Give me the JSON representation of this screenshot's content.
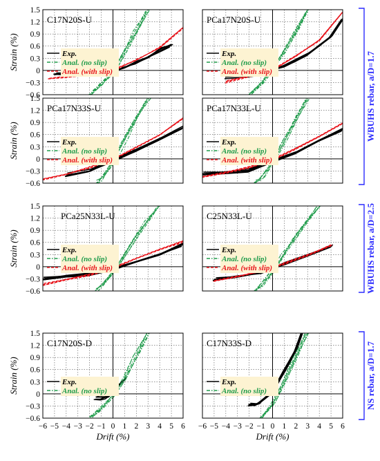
{
  "colors": {
    "exp": "#000000",
    "anal_no_slip": "#1e9b4a",
    "anal_with_slip": "#e8141b",
    "bracket": "#2a2aff",
    "grid": "#555555"
  },
  "axes": {
    "xlabel": "Drift (%)",
    "ylabel": "Strain (%)",
    "xlim": [
      -6,
      6
    ],
    "ylim": [
      -0.6,
      1.5
    ],
    "x_ticks": [
      "−6",
      "−5",
      "−4",
      "−3",
      "−2",
      "−1",
      "0",
      "1",
      "2",
      "3",
      "4",
      "5",
      "6"
    ],
    "y_ticks": [
      "1.5",
      "1.2",
      "0.9",
      "0.6",
      "0.3",
      "0",
      "−0.3",
      "−0.6"
    ]
  },
  "legend": {
    "exp": "Exp.",
    "no_slip": "Anal. (no slip)",
    "with_slip": "Anal. (with slip)"
  },
  "groups": [
    {
      "label": "WBUHS rebar, a/D=1.7",
      "rows": [
        0,
        1
      ]
    },
    {
      "label": "WBUHS rebar, a/D=2.5",
      "rows": [
        2,
        2
      ]
    },
    {
      "label": "NS rebar, a/D=1.7",
      "rows": [
        3,
        3
      ]
    }
  ],
  "chart_data": [
    {
      "type": "line",
      "title": "C17N20S-U",
      "xlim": [
        -6,
        6
      ],
      "ylim": [
        -0.6,
        1.5
      ],
      "series": [
        {
          "name": "Exp.",
          "x": [
            -5,
            -3,
            -1,
            0,
            1,
            2,
            3,
            4,
            5
          ],
          "y": [
            -0.08,
            -0.08,
            -0.07,
            -0.03,
            0.08,
            0.2,
            0.32,
            0.5,
            0.62
          ]
        },
        {
          "name": "Anal. (no slip)",
          "x": [
            -2,
            -1,
            0,
            1,
            2,
            3
          ],
          "y": [
            -0.6,
            -0.33,
            -0.03,
            0.45,
            0.98,
            1.5
          ]
        },
        {
          "name": "Anal. (with slip)",
          "x": [
            -5.5,
            -4,
            -2,
            0,
            2,
            4,
            6
          ],
          "y": [
            -0.2,
            -0.15,
            -0.1,
            0.0,
            0.26,
            0.57,
            1.05
          ]
        }
      ]
    },
    {
      "type": "line",
      "title": "PCa17N20S-U",
      "xlim": [
        -6,
        6
      ],
      "ylim": [
        -0.6,
        1.5
      ],
      "series": [
        {
          "name": "Exp.",
          "x": [
            -4,
            -2,
            -1,
            0,
            1,
            2,
            3,
            4,
            5,
            6
          ],
          "y": [
            -0.15,
            -0.14,
            -0.1,
            0.0,
            0.12,
            0.25,
            0.4,
            0.6,
            0.85,
            1.3
          ]
        },
        {
          "name": "Anal. (no slip)",
          "x": [
            -2,
            -1,
            0,
            1,
            2,
            3
          ],
          "y": [
            -0.6,
            -0.35,
            0.0,
            0.45,
            0.98,
            1.5
          ]
        },
        {
          "name": "Anal. (with slip)",
          "x": [
            -4,
            -2,
            0,
            2,
            4,
            6
          ],
          "y": [
            -0.28,
            -0.15,
            0.0,
            0.35,
            0.75,
            1.45
          ]
        }
      ]
    },
    {
      "type": "line",
      "title": "PCa17N33S-U",
      "xlim": [
        -6,
        6
      ],
      "ylim": [
        -0.6,
        1.5
      ],
      "series": [
        {
          "name": "Exp.",
          "x": [
            -4,
            -2,
            0,
            2,
            4,
            6
          ],
          "y": [
            -0.4,
            -0.3,
            -0.05,
            0.2,
            0.48,
            0.78
          ]
        },
        {
          "name": "Anal. (no slip)",
          "x": [
            -1.5,
            -1,
            0,
            1,
            2,
            3
          ],
          "y": [
            -0.6,
            -0.52,
            -0.1,
            0.48,
            1.0,
            1.5
          ]
        },
        {
          "name": "Anal. (with slip)",
          "x": [
            -6,
            -4,
            -2,
            0,
            2,
            4,
            6
          ],
          "y": [
            -0.5,
            -0.38,
            -0.22,
            -0.02,
            0.28,
            0.6,
            1.0
          ]
        }
      ]
    },
    {
      "type": "line",
      "title": "PCa17N33L-U",
      "xlim": [
        -6,
        6
      ],
      "ylim": [
        -0.6,
        1.5
      ],
      "series": [
        {
          "name": "Exp.",
          "x": [
            -6,
            -4,
            -2,
            0,
            2,
            4,
            6
          ],
          "y": [
            -0.38,
            -0.35,
            -0.28,
            -0.05,
            0.15,
            0.45,
            0.72
          ]
        },
        {
          "name": "Anal. (no slip)",
          "x": [
            -1.5,
            -1,
            0,
            1,
            2,
            3
          ],
          "y": [
            -0.6,
            -0.5,
            -0.08,
            0.45,
            0.98,
            1.5
          ]
        },
        {
          "name": "Anal. (with slip)",
          "x": [
            -6,
            -4,
            -2,
            0,
            2,
            4,
            6
          ],
          "y": [
            -0.45,
            -0.35,
            -0.2,
            -0.02,
            0.25,
            0.55,
            0.88
          ]
        }
      ]
    },
    {
      "type": "line",
      "title": "PCa25N33L-U",
      "xlim": [
        -6,
        6
      ],
      "ylim": [
        -0.6,
        1.5
      ],
      "series": [
        {
          "name": "Exp.",
          "x": [
            -6,
            -4,
            -2,
            0,
            2,
            4,
            6
          ],
          "y": [
            -0.3,
            -0.25,
            -0.18,
            -0.05,
            0.12,
            0.3,
            0.55
          ]
        },
        {
          "name": "Anal. (no slip)",
          "x": [
            -1.5,
            -1,
            0,
            1,
            2,
            3,
            4
          ],
          "y": [
            -0.6,
            -0.5,
            -0.15,
            0.3,
            0.75,
            1.15,
            1.5
          ]
        },
        {
          "name": "Anal. (with slip)",
          "x": [
            -6,
            -4,
            -2,
            0,
            2,
            4,
            6
          ],
          "y": [
            -0.45,
            -0.33,
            -0.2,
            -0.03,
            0.2,
            0.42,
            0.62
          ]
        }
      ]
    },
    {
      "type": "line",
      "title": "C25N33L-U",
      "xlim": [
        -6,
        6
      ],
      "ylim": [
        -0.6,
        1.5
      ],
      "series": [
        {
          "name": "Exp.",
          "x": [
            -5,
            -3,
            -1,
            0,
            1,
            3,
            5
          ],
          "y": [
            -0.32,
            -0.25,
            -0.15,
            -0.05,
            0.08,
            0.28,
            0.5
          ]
        },
        {
          "name": "Anal. (no slip)",
          "x": [
            -1.5,
            -1,
            0,
            1,
            2,
            3,
            4
          ],
          "y": [
            -0.6,
            -0.48,
            -0.12,
            0.32,
            0.75,
            1.15,
            1.5
          ]
        },
        {
          "name": "Anal. (with slip)",
          "x": [
            -5,
            -3,
            -1,
            0,
            1,
            3,
            5
          ],
          "y": [
            -0.35,
            -0.25,
            -0.12,
            -0.03,
            0.08,
            0.28,
            0.52
          ]
        }
      ]
    },
    {
      "type": "line",
      "title": "C17N20S-D",
      "xlim": [
        -6,
        6
      ],
      "ylim": [
        -0.6,
        1.5
      ],
      "series": [
        {
          "name": "Exp.",
          "x": [
            -1.5,
            -1,
            -0.5,
            0,
            0.5,
            1
          ],
          "y": [
            -0.1,
            -0.1,
            -0.08,
            0.05,
            0.2,
            0.35
          ]
        },
        {
          "name": "Anal. (no slip)",
          "x": [
            -2,
            -1,
            0,
            1,
            2,
            3
          ],
          "y": [
            -0.6,
            -0.35,
            -0.05,
            0.4,
            0.95,
            1.5
          ]
        }
      ]
    },
    {
      "type": "line",
      "title": "C17N33S-D",
      "xlim": [
        -6,
        6
      ],
      "ylim": [
        -0.6,
        1.5
      ],
      "series": [
        {
          "name": "Exp.",
          "x": [
            -2,
            -1.5,
            -1,
            0,
            1,
            2,
            2.5
          ],
          "y": [
            -0.25,
            -0.27,
            -0.2,
            0.05,
            0.55,
            1.1,
            1.5
          ]
        },
        {
          "name": "Anal. (no slip)",
          "x": [
            -1,
            0,
            1,
            2,
            3
          ],
          "y": [
            -0.6,
            -0.25,
            0.3,
            0.9,
            1.5
          ]
        }
      ]
    }
  ]
}
